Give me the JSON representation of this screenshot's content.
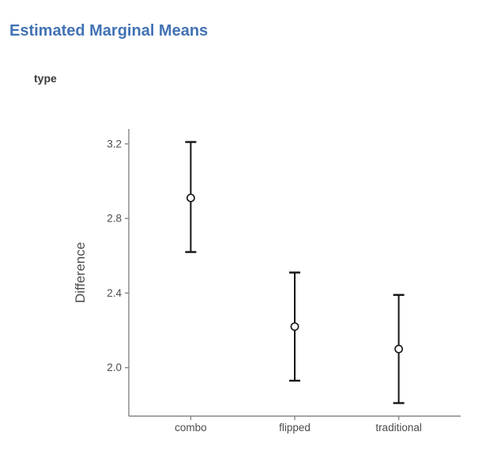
{
  "page": {
    "title": "Estimated Marginal Means",
    "plot_title": "type"
  },
  "colors": {
    "background": "#ffffff",
    "heading": "#4272B4",
    "plot_title_text": "#3a3a3a",
    "axis_line": "#878787",
    "axis_text": "#4d4d4d",
    "errorbar": "#141414",
    "point_fill": "#ffffff"
  },
  "chart_data": {
    "type": "scatter",
    "subtype": "point-estimate-with-error-bars",
    "title": "type",
    "xlabel": "",
    "ylabel": "Difference",
    "categories": [
      "combo",
      "flipped",
      "traditional"
    ],
    "series": [
      {
        "name": "Difference",
        "means": [
          2.91,
          2.22,
          2.1
        ],
        "ci_lower": [
          2.62,
          1.93,
          1.81
        ],
        "ci_upper": [
          3.21,
          2.51,
          2.39
        ]
      }
    ],
    "yticks": [
      2.0,
      2.4,
      2.8,
      3.2
    ],
    "ytick_labels": [
      "2.0",
      "2.4",
      "2.8",
      "3.2"
    ],
    "ylim": [
      1.74,
      3.28
    ],
    "grid": false,
    "legend": false
  }
}
